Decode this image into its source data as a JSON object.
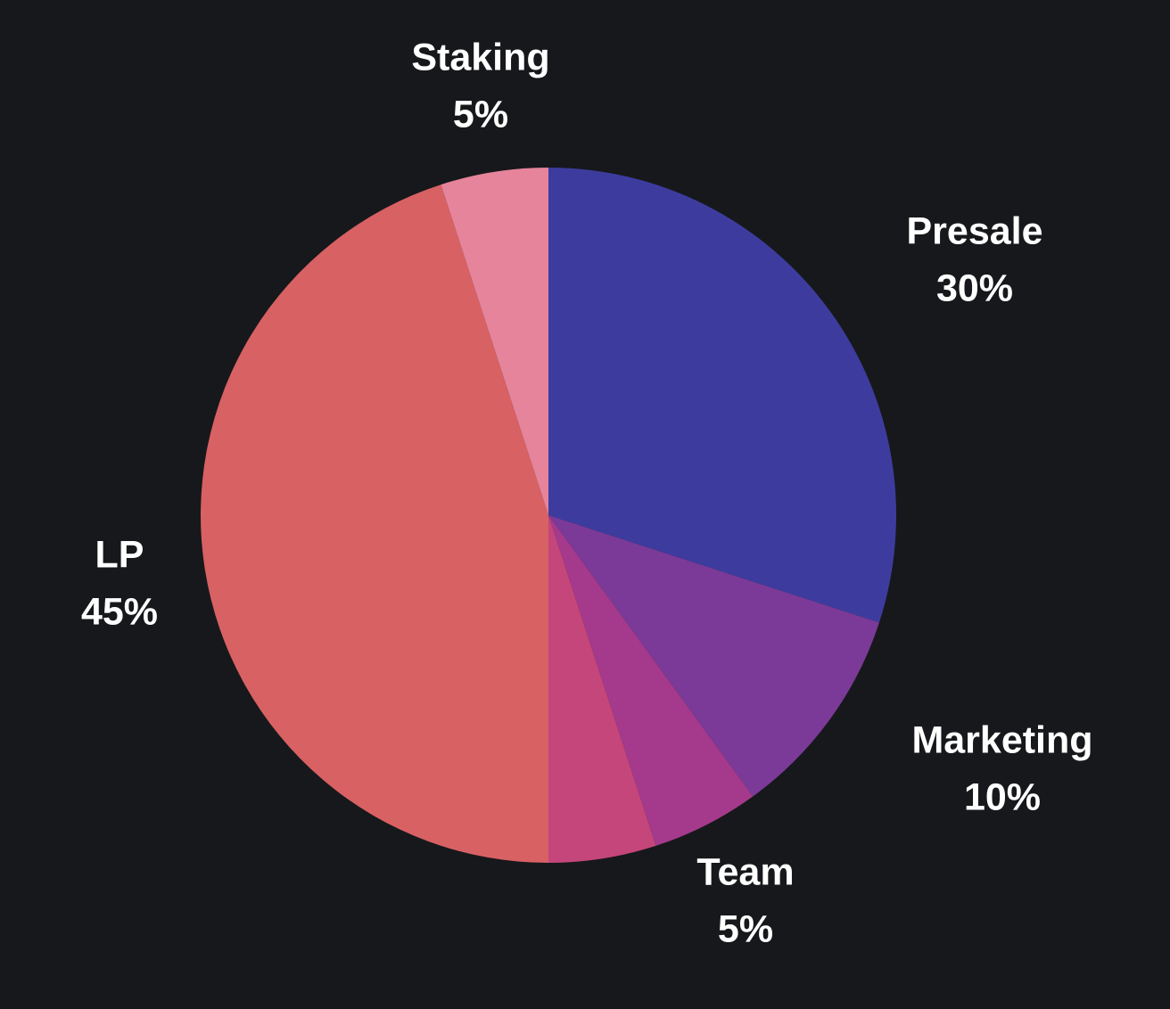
{
  "chart_data": {
    "type": "pie",
    "title": "",
    "slices": [
      {
        "label": "Presale",
        "value": 30,
        "display": "30%",
        "color": "#3d3c9e"
      },
      {
        "label": "Marketing",
        "value": 10,
        "display": "10%",
        "color": "#7b3a98"
      },
      {
        "label": "Team",
        "value": 5,
        "display": "5%",
        "color": "#a53a8c"
      },
      {
        "label": "",
        "value": 5,
        "display": "",
        "color": "#c4467b"
      },
      {
        "label": "LP",
        "value": 45,
        "display": "45%",
        "color": "#d86164"
      },
      {
        "label": "Staking",
        "value": 5,
        "display": "5%",
        "color": "#e5849a"
      }
    ],
    "background": "#17181b",
    "label_color": "#ffffff"
  }
}
